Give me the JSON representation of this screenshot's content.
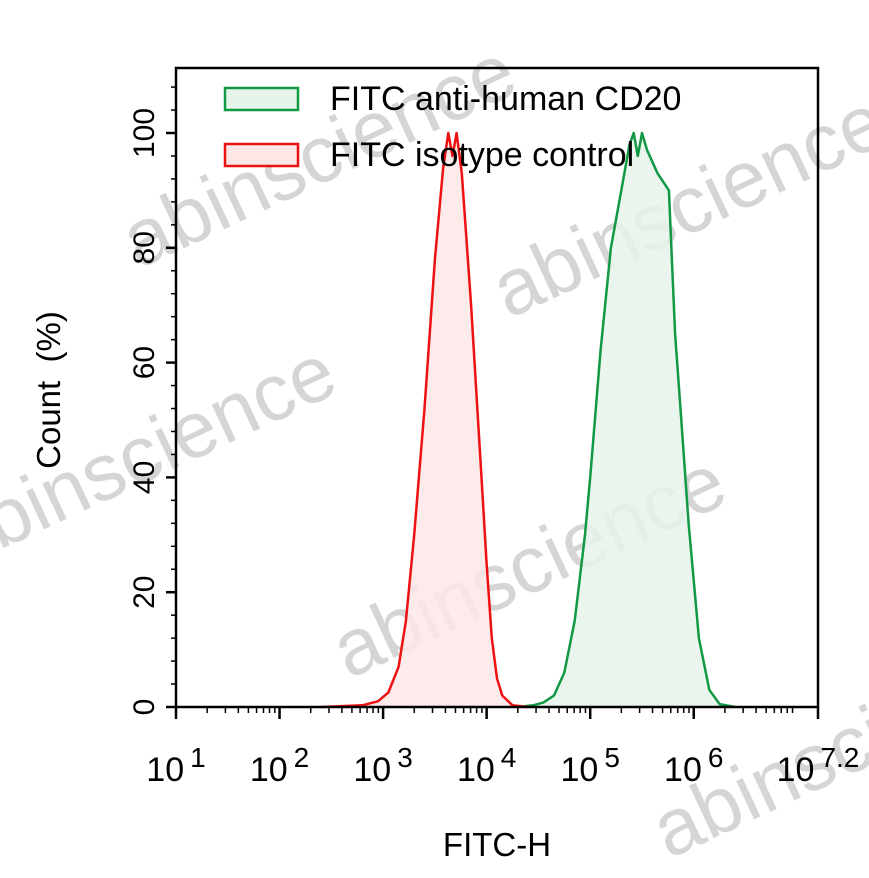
{
  "chart_data": {
    "type": "area",
    "title": "",
    "xlabel": "FITC-H",
    "ylabel": "Count  (%)",
    "xscale": "log10",
    "xlim_log10": [
      1,
      7.2
    ],
    "ylim": [
      0,
      111
    ],
    "x_ticks": [
      {
        "base": "10",
        "exp": "1",
        "log": 1
      },
      {
        "base": "10",
        "exp": "2",
        "log": 2
      },
      {
        "base": "10",
        "exp": "3",
        "log": 3
      },
      {
        "base": "10",
        "exp": "4",
        "log": 4
      },
      {
        "base": "10",
        "exp": "5",
        "log": 5
      },
      {
        "base": "10",
        "exp": "6",
        "log": 6
      },
      {
        "base": "10",
        "exp": "7.2",
        "log": 7.2
      }
    ],
    "y_ticks": [
      "0",
      "20",
      "40",
      "60",
      "80",
      "100"
    ],
    "legend": {
      "placement": "top-left",
      "entries": [
        "FITC anti-human CD20",
        "FITC isotype control"
      ]
    },
    "series": [
      {
        "name": "FITC anti-human CD20",
        "stroke": "#119944",
        "fill": "#e6f4ea",
        "points_log10x_y": [
          [
            4.3,
            0
          ],
          [
            4.45,
            0.3
          ],
          [
            4.55,
            0.8
          ],
          [
            4.65,
            2
          ],
          [
            4.75,
            6
          ],
          [
            4.85,
            15
          ],
          [
            4.95,
            30
          ],
          [
            5.0,
            40
          ],
          [
            5.1,
            62
          ],
          [
            5.2,
            80
          ],
          [
            5.3,
            90
          ],
          [
            5.38,
            98
          ],
          [
            5.42,
            100
          ],
          [
            5.46,
            96
          ],
          [
            5.5,
            100
          ],
          [
            5.55,
            97
          ],
          [
            5.65,
            93
          ],
          [
            5.76,
            90
          ],
          [
            5.82,
            65
          ],
          [
            5.88,
            50
          ],
          [
            5.95,
            32
          ],
          [
            6.05,
            12
          ],
          [
            6.15,
            3
          ],
          [
            6.25,
            0.5
          ],
          [
            6.4,
            0
          ]
        ]
      },
      {
        "name": "FITC isotype control",
        "stroke": "#ee1111",
        "fill": "#fde6e6",
        "points_log10x_y": [
          [
            2.4,
            0
          ],
          [
            2.8,
            0.3
          ],
          [
            2.95,
            1
          ],
          [
            3.05,
            2.5
          ],
          [
            3.15,
            7
          ],
          [
            3.22,
            15
          ],
          [
            3.3,
            30
          ],
          [
            3.4,
            52
          ],
          [
            3.5,
            78
          ],
          [
            3.58,
            94
          ],
          [
            3.63,
            100
          ],
          [
            3.67,
            96
          ],
          [
            3.71,
            100
          ],
          [
            3.76,
            93
          ],
          [
            3.85,
            70
          ],
          [
            3.95,
            40
          ],
          [
            4.0,
            25
          ],
          [
            4.05,
            12
          ],
          [
            4.1,
            5
          ],
          [
            4.15,
            2
          ],
          [
            4.25,
            0.3
          ],
          [
            4.4,
            0
          ]
        ]
      }
    ]
  },
  "watermark": "abinscience"
}
